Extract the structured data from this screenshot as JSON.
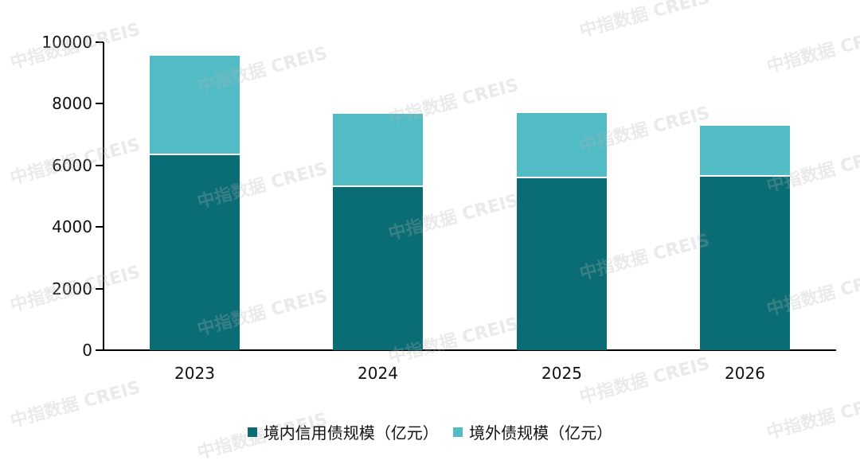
{
  "chart_data": {
    "type": "bar",
    "stacked": true,
    "title": "",
    "xlabel": "",
    "ylabel": "",
    "categories": [
      "2023",
      "2024",
      "2025",
      "2026"
    ],
    "series": [
      {
        "name": "境内信用债规模（亿元）",
        "color": "#0a6c74",
        "values": [
          6330,
          5300,
          5580,
          5630
        ]
      },
      {
        "name": "境外债规模（亿元）",
        "color": "#52bcc6",
        "values": [
          3230,
          2380,
          2120,
          1660
        ]
      }
    ],
    "ylim": [
      0,
      10000
    ],
    "yticks": [
      "0",
      "2000",
      "4000",
      "6000",
      "8000",
      "10000"
    ],
    "grid": false,
    "legend_position": "bottom"
  },
  "legend": {
    "items": [
      {
        "label": "境内信用债规模（亿元）",
        "color": "#0a6c74"
      },
      {
        "label": "境外债规模（亿元）",
        "color": "#52bcc6"
      }
    ]
  },
  "watermark": {
    "text_cn": "中指数据",
    "text_en": "CREIS"
  }
}
